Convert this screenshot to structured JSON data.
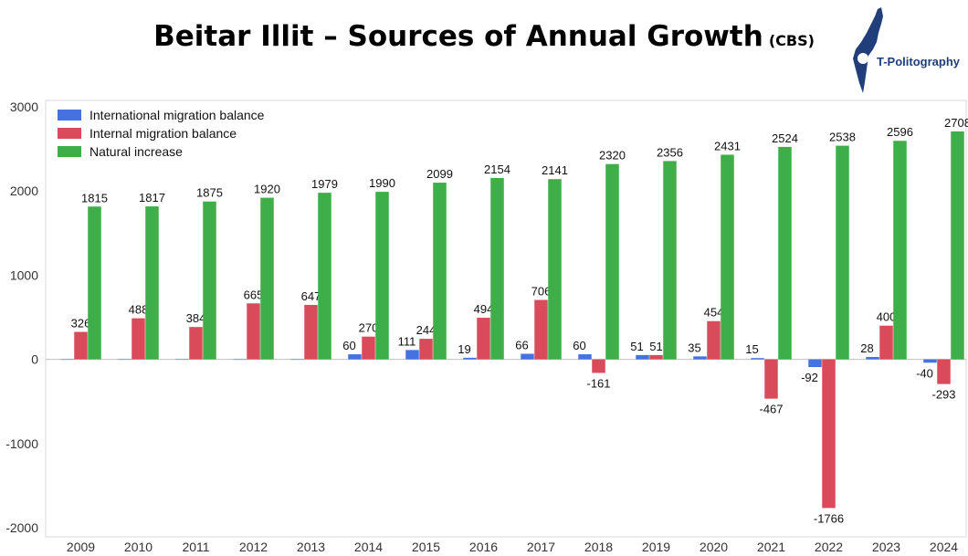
{
  "title": "Beitar Illit – Sources of Annual Growth",
  "title_source": "(CBS)",
  "logo_text": "T-Politography",
  "colors": {
    "international": "#4472E0",
    "internal": "#D94A5A",
    "natural": "#3DAE48",
    "logo": "#1f3e7a"
  },
  "chart_data": {
    "type": "bar",
    "categories": [
      "2009",
      "2010",
      "2011",
      "2012",
      "2013",
      "2014",
      "2015",
      "2016",
      "2017",
      "2018",
      "2019",
      "2020",
      "2021",
      "2022",
      "2023",
      "2024"
    ],
    "series": [
      {
        "name": "International migration balance",
        "color": "#4472E0",
        "values": [
          0,
          0,
          0,
          0,
          0,
          60,
          111,
          19,
          66,
          60,
          51,
          35,
          15,
          -92,
          28,
          -40
        ],
        "labels": [
          "",
          "",
          "",
          "",
          "",
          "60",
          "111",
          "19",
          "66",
          "60",
          "51",
          "35",
          "15",
          "-92",
          "28",
          "-40"
        ]
      },
      {
        "name": "Internal migration balance",
        "color": "#D94A5A",
        "values": [
          326,
          488,
          384,
          665,
          647,
          270,
          244,
          494,
          706,
          -161,
          51,
          454,
          -467,
          -1766,
          400,
          -293
        ],
        "labels": [
          "326",
          "488",
          "384",
          "665",
          "647",
          "270",
          "244",
          "494",
          "706",
          "-161",
          "51",
          "454",
          "-467",
          "-1766",
          "400",
          "-293"
        ]
      },
      {
        "name": "Natural increase",
        "color": "#3DAE48",
        "values": [
          1815,
          1817,
          1875,
          1920,
          1979,
          1990,
          2099,
          2154,
          2141,
          2320,
          2356,
          2431,
          2524,
          2538,
          2596,
          2708
        ],
        "labels": [
          "1815",
          "1817",
          "1875",
          "1920",
          "1979",
          "1990",
          "2099",
          "2154",
          "2141",
          "2320",
          "2356",
          "2431",
          "2524",
          "2538",
          "2596",
          "2708"
        ]
      }
    ],
    "yticks": [
      "3000",
      "2000",
      "1000",
      "0",
      "-1000",
      "-2000"
    ],
    "ytick_values": [
      3000,
      2000,
      1000,
      0,
      -1000,
      -2000
    ],
    "ylim": [
      -2000,
      3000
    ],
    "grid": false,
    "legend_position": "top-left"
  }
}
